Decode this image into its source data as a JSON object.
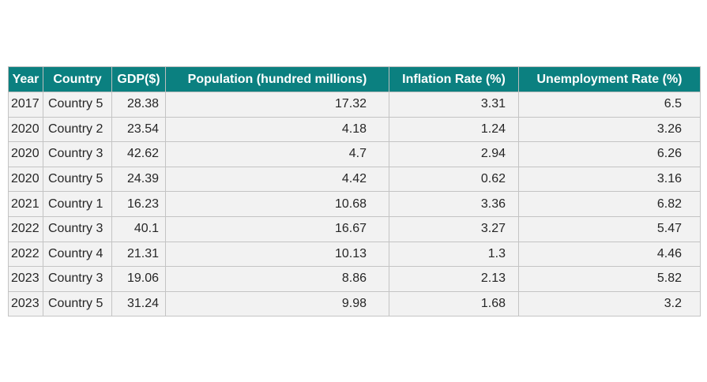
{
  "chart_data": {
    "type": "table",
    "columns": [
      "Year",
      "Country",
      "GDP($)",
      "Population (hundred millions)",
      "Inflation Rate (%)",
      "Unemployment Rate (%)"
    ],
    "rows": [
      [
        "2017",
        "Country 5",
        "28.38",
        "17.32",
        "3.31",
        "6.5"
      ],
      [
        "2020",
        "Country 2",
        "23.54",
        "4.18",
        "1.24",
        "3.26"
      ],
      [
        "2020",
        "Country 3",
        "42.62",
        "4.7",
        "2.94",
        "6.26"
      ],
      [
        "2020",
        "Country 5",
        "24.39",
        "4.42",
        "0.62",
        "3.16"
      ],
      [
        "2021",
        "Country 1",
        "16.23",
        "10.68",
        "3.36",
        "6.82"
      ],
      [
        "2022",
        "Country 3",
        "40.1",
        "16.67",
        "3.27",
        "5.47"
      ],
      [
        "2022",
        "Country 4",
        "21.31",
        "10.13",
        "1.3",
        "4.46"
      ],
      [
        "2023",
        "Country 3",
        "19.06",
        "8.86",
        "2.13",
        "5.82"
      ],
      [
        "2023",
        "Country 5",
        "31.24",
        "9.98",
        "1.68",
        "3.2"
      ]
    ],
    "header_color": "#0b8080",
    "header_text_color": "#ffffff",
    "cell_color": "#f2f2f2",
    "border_color": "#c4c4c4"
  }
}
